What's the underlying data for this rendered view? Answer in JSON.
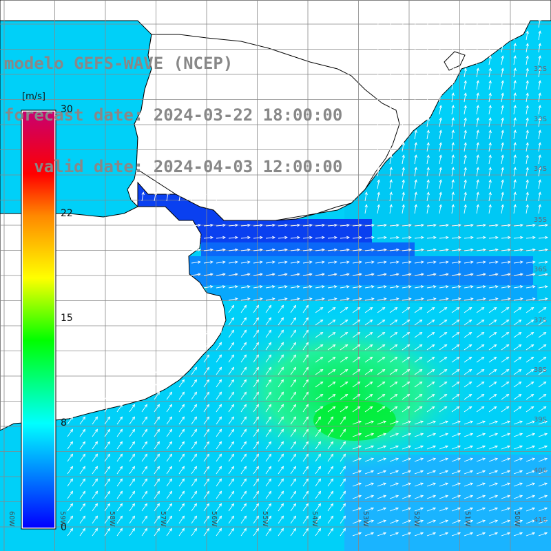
{
  "header": {
    "line1": "modelo GEFS-WAVE (NCEP)",
    "line2": "forecast date: 2024-03-22 18:00:00",
    "line3": "   valid date: 2024-04-03 12:00:00"
  },
  "colorbar": {
    "unit": "[m/s]",
    "ticks": [
      "30",
      "22",
      "15",
      "8",
      "0"
    ],
    "min": 0,
    "max": 30,
    "colors": [
      "#0000ff",
      "#0088ff",
      "#00ffff",
      "#00ff00",
      "#ffff00",
      "#ff8800",
      "#ff0000",
      "#c80070"
    ]
  },
  "axes": {
    "lon_labels": [
      "60W",
      "59W",
      "58W",
      "57W",
      "56W",
      "55W",
      "54W",
      "53W",
      "52W",
      "51W",
      "50W"
    ],
    "lat_labels": [
      "32S",
      "33S",
      "34S",
      "35S",
      "36S",
      "37S",
      "38S",
      "39S",
      "40S",
      "41S"
    ]
  },
  "map": {
    "ocean_color": "#00d4ff",
    "jet_color": "#18f0a0",
    "bay_color": "#0a3cf0",
    "land_color": "#ffffff",
    "coast_color": "#000000",
    "arrow_color": "#ffffff",
    "grid_color": "#888888"
  }
}
